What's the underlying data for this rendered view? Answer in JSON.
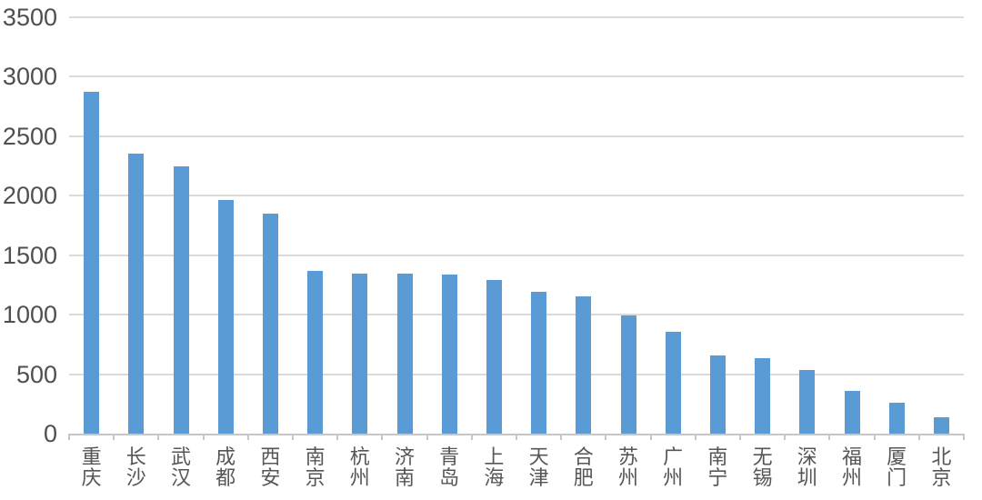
{
  "chart_data": {
    "type": "bar",
    "title": "",
    "xlabel": "",
    "ylabel": "",
    "categories": [
      "重庆",
      "长沙",
      "武汉",
      "成都",
      "西安",
      "南京",
      "杭州",
      "济南",
      "青岛",
      "上海",
      "天津",
      "合肥",
      "苏州",
      "广州",
      "南宁",
      "无锡",
      "深圳",
      "福州",
      "厦门",
      "北京"
    ],
    "values": [
      2870,
      2350,
      2250,
      1965,
      1850,
      1370,
      1345,
      1345,
      1340,
      1290,
      1190,
      1155,
      995,
      855,
      655,
      635,
      535,
      360,
      260,
      135
    ],
    "ylim": [
      0,
      3500
    ],
    "ytick_step": 500,
    "ytick_labels": [
      "0",
      "500",
      "1000",
      "1500",
      "2000",
      "2500",
      "3000",
      "3500"
    ],
    "grid": true,
    "legend": "none",
    "bar_color": "#5B9BD5",
    "gridline_color": "#dadada",
    "axis_color": "#c6c6c6",
    "text_color": "#4f4f4f"
  }
}
